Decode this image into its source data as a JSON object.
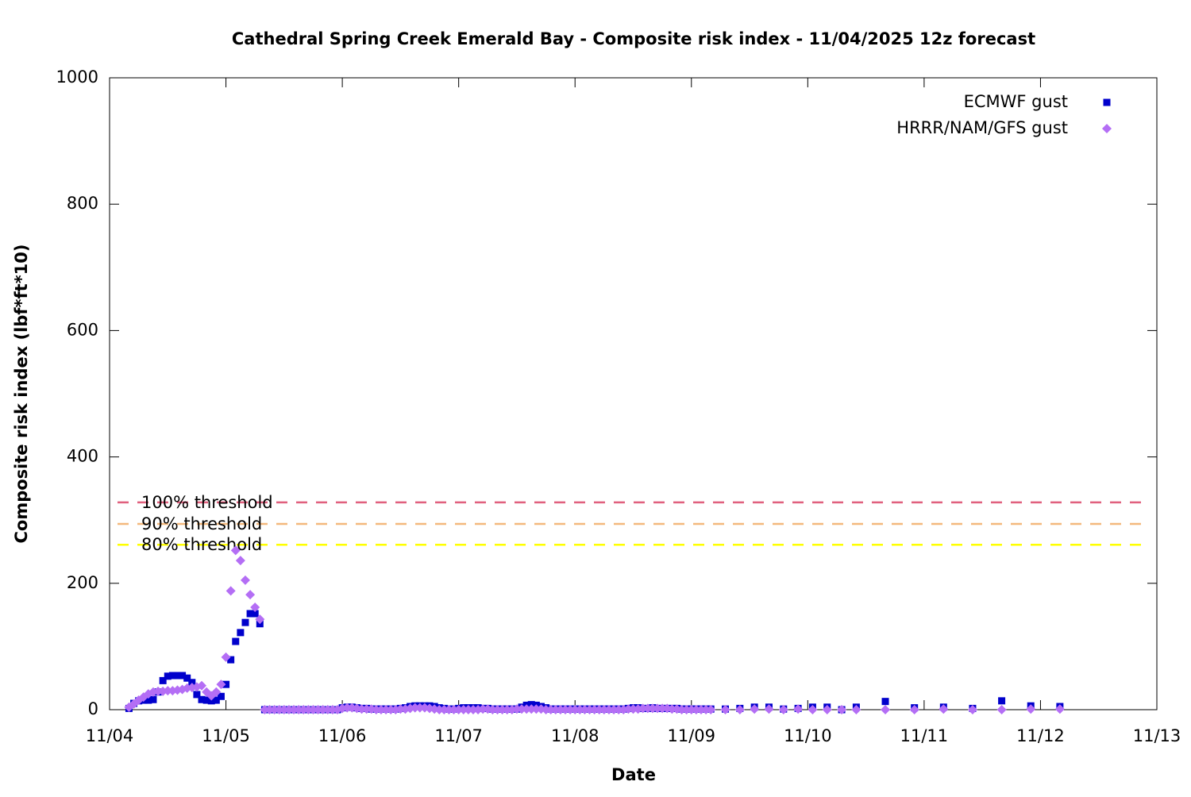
{
  "chart_data": {
    "type": "scatter",
    "title": "Cathedral Spring Creek Emerald Bay - Composite risk index - 11/04/2025 12z forecast",
    "xlabel": "Date",
    "ylabel": "Composite risk index (lbf*ft*10)",
    "xlim": [
      "11/04",
      "11/13"
    ],
    "xticks": [
      "11/04",
      "11/05",
      "11/06",
      "11/07",
      "11/08",
      "11/09",
      "11/10",
      "11/11",
      "11/12",
      "11/13"
    ],
    "ylim": [
      0,
      1000
    ],
    "yticks": [
      0,
      200,
      400,
      600,
      800,
      1000
    ],
    "legend": "top right",
    "x": [
      "11/04 04:00",
      "11/04 05:00",
      "11/04 06:00",
      "11/04 07:00",
      "11/04 08:00",
      "11/04 09:00",
      "11/04 10:00",
      "11/04 11:00",
      "11/04 12:00",
      "11/04 13:00",
      "11/04 14:00",
      "11/04 15:00",
      "11/04 16:00",
      "11/04 17:00",
      "11/04 18:00",
      "11/04 19:00",
      "11/04 20:00",
      "11/04 21:00",
      "11/04 22:00",
      "11/04 23:00",
      "11/05 00:00",
      "11/05 01:00",
      "11/05 02:00",
      "11/05 03:00",
      "11/05 04:00",
      "11/05 05:00",
      "11/05 06:00",
      "11/05 07:00",
      "11/05 08:00",
      "11/05 09:00",
      "11/05 10:00",
      "11/05 11:00",
      "11/05 12:00",
      "11/05 13:00",
      "11/05 14:00",
      "11/05 15:00",
      "11/05 16:00",
      "11/05 17:00",
      "11/05 18:00",
      "11/05 19:00",
      "11/05 20:00",
      "11/05 21:00",
      "11/05 22:00",
      "11/05 23:00",
      "11/06 00:00",
      "11/06 01:00",
      "11/06 02:00",
      "11/06 03:00",
      "11/06 04:00",
      "11/06 05:00",
      "11/06 06:00",
      "11/06 07:00",
      "11/06 08:00",
      "11/06 09:00",
      "11/06 10:00",
      "11/06 11:00",
      "11/06 12:00",
      "11/06 13:00",
      "11/06 14:00",
      "11/06 15:00",
      "11/06 16:00",
      "11/06 17:00",
      "11/06 18:00",
      "11/06 19:00",
      "11/06 20:00",
      "11/06 21:00",
      "11/06 22:00",
      "11/06 23:00",
      "11/07 00:00",
      "11/07 01:00",
      "11/07 02:00",
      "11/07 03:00",
      "11/07 04:00",
      "11/07 05:00",
      "11/07 06:00",
      "11/07 07:00",
      "11/07 08:00",
      "11/07 09:00",
      "11/07 10:00",
      "11/07 11:00",
      "11/07 12:00",
      "11/07 13:00",
      "11/07 14:00",
      "11/07 15:00",
      "11/07 16:00",
      "11/07 17:00",
      "11/07 18:00",
      "11/07 19:00",
      "11/07 20:00",
      "11/07 21:00",
      "11/07 22:00",
      "11/07 23:00",
      "11/08 00:00",
      "11/08 01:00",
      "11/08 02:00",
      "11/08 03:00",
      "11/08 04:00",
      "11/08 05:00",
      "11/08 06:00",
      "11/08 07:00",
      "11/08 08:00",
      "11/08 09:00",
      "11/08 10:00",
      "11/08 11:00",
      "11/08 12:00",
      "11/08 13:00",
      "11/08 14:00",
      "11/08 15:00",
      "11/08 16:00",
      "11/08 17:00",
      "11/08 18:00",
      "11/08 19:00",
      "11/08 20:00",
      "11/08 21:00",
      "11/08 22:00",
      "11/08 23:00",
      "11/09 00:00",
      "11/09 01:00",
      "11/09 02:00",
      "11/09 03:00",
      "11/09 04:00",
      "11/09 07:00",
      "11/09 10:00",
      "11/09 13:00",
      "11/09 16:00",
      "11/09 19:00",
      "11/09 22:00",
      "11/10 01:00",
      "11/10 04:00",
      "11/10 07:00",
      "11/10 10:00",
      "11/10 16:00",
      "11/10 22:00",
      "11/11 04:00",
      "11/11 10:00",
      "11/11 16:00",
      "11/11 22:00",
      "11/12 04:00"
    ],
    "series": [
      {
        "name": "ECMWF gust",
        "color": "#0000cc",
        "marker": "square",
        "values": [
          2,
          10,
          14,
          15,
          15,
          16,
          28,
          46,
          53,
          54,
          54,
          54,
          50,
          43,
          24,
          16,
          15,
          14,
          15,
          21,
          40,
          79,
          108,
          122,
          138,
          152,
          152,
          136,
          0,
          0,
          0,
          0,
          0,
          0,
          0,
          0,
          0,
          0,
          0,
          0,
          0,
          0,
          0,
          0,
          3,
          4,
          4,
          3,
          2,
          2,
          1,
          1,
          1,
          1,
          1,
          1,
          2,
          3,
          5,
          6,
          6,
          6,
          6,
          5,
          3,
          2,
          1,
          1,
          2,
          3,
          3,
          3,
          3,
          2,
          2,
          1,
          1,
          1,
          1,
          1,
          1,
          4,
          7,
          8,
          7,
          5,
          3,
          1,
          1,
          1,
          1,
          1,
          1,
          1,
          1,
          1,
          1,
          1,
          1,
          1,
          1,
          1,
          1,
          2,
          3,
          3,
          2,
          2,
          3,
          2,
          2,
          2,
          2,
          2,
          1,
          1,
          1,
          1,
          1,
          1,
          1,
          1,
          2,
          4,
          4,
          1,
          2,
          4,
          4,
          0,
          4,
          13,
          3,
          4,
          2,
          14,
          6,
          5
        ]
      },
      {
        "name": "HRRR/NAM/GFS gust",
        "color": "#b46ef5",
        "marker": "diamond",
        "values": [
          4,
          9,
          15,
          20,
          25,
          28,
          29,
          29,
          30,
          30,
          31,
          32,
          34,
          35,
          36,
          38,
          28,
          22,
          28,
          40,
          83,
          188,
          252,
          236,
          205,
          182,
          162,
          143,
          0,
          0,
          0,
          0,
          0,
          0,
          0,
          0,
          0,
          0,
          0,
          0,
          0,
          0,
          0,
          0,
          2,
          3,
          3,
          2,
          1,
          1,
          1,
          0,
          0,
          0,
          0,
          0,
          1,
          1,
          2,
          3,
          3,
          3,
          2,
          1,
          0,
          0,
          0,
          0,
          0,
          0,
          0,
          0,
          0,
          1,
          1,
          0,
          0,
          0,
          0,
          0,
          1,
          1,
          1,
          1,
          1,
          1,
          0,
          0,
          0,
          0,
          0,
          0,
          0,
          0,
          0,
          0,
          0,
          0,
          0,
          0,
          0,
          0,
          0,
          1,
          1,
          1,
          2,
          2,
          2,
          2,
          2,
          2,
          1,
          1,
          0,
          0,
          0,
          0,
          0,
          0,
          0,
          0,
          0,
          1,
          1,
          0,
          1,
          0,
          0,
          0,
          0,
          0,
          0,
          1,
          0,
          0,
          1,
          1
        ]
      }
    ],
    "threshold_lines": [
      {
        "label": "100% threshold",
        "value": 328,
        "color": "#e0607e"
      },
      {
        "label": "90% threshold",
        "value": 294,
        "color": "#f4b87c"
      },
      {
        "label": "80% threshold",
        "value": 261,
        "color": "#ffff00"
      }
    ]
  }
}
